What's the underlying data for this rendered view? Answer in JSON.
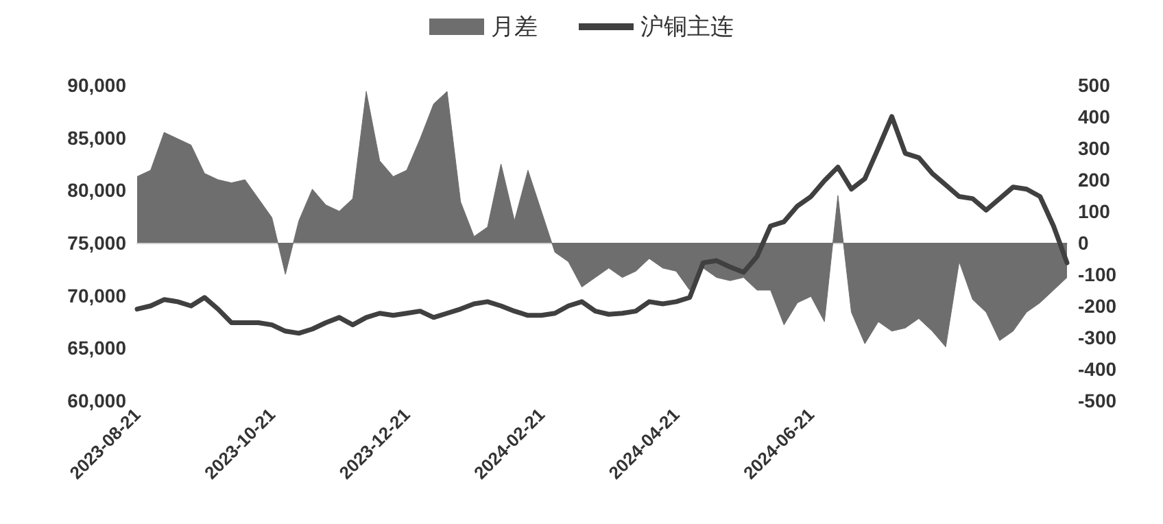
{
  "chart_data": {
    "type": "line",
    "categories": [
      "2023-08-21",
      null,
      null,
      null,
      null,
      null,
      null,
      null,
      null,
      null,
      "2023-10-21",
      null,
      null,
      null,
      null,
      null,
      null,
      null,
      null,
      null,
      "2023-12-21",
      null,
      null,
      null,
      null,
      null,
      null,
      null,
      null,
      null,
      "2024-02-21",
      null,
      null,
      null,
      null,
      null,
      null,
      null,
      null,
      null,
      "2024-04-21",
      null,
      null,
      null,
      null,
      null,
      null,
      null,
      null,
      null,
      "2024-06-21",
      null,
      null,
      null,
      null,
      null,
      null,
      null,
      null,
      null,
      null,
      null,
      null,
      null,
      null,
      null,
      null,
      null,
      null,
      null
    ],
    "series": [
      {
        "name": "月差",
        "type": "area",
        "axis": "y2",
        "color": "#6e6e6e",
        "values": [
          210,
          230,
          350,
          330,
          310,
          220,
          200,
          190,
          200,
          140,
          80,
          -100,
          70,
          170,
          120,
          100,
          140,
          480,
          260,
          210,
          230,
          330,
          440,
          480,
          130,
          20,
          50,
          250,
          70,
          230,
          100,
          -30,
          -60,
          -140,
          -110,
          -80,
          -110,
          -90,
          -50,
          -80,
          -90,
          -150,
          -80,
          -110,
          -120,
          -110,
          -150,
          -150,
          -260,
          -190,
          -170,
          -250,
          150,
          -220,
          -320,
          -250,
          -280,
          -270,
          -240,
          -280,
          -330,
          -60,
          -180,
          -220,
          -310,
          -280,
          -220,
          -190,
          -150,
          -110
        ]
      },
      {
        "name": "沪铜主连",
        "color": "#404040",
        "values": [
          68700,
          69000,
          69600,
          69400,
          69000,
          69800,
          68700,
          67400,
          67400,
          67400,
          67200,
          66600,
          66400,
          66800,
          67400,
          67900,
          67200,
          67900,
          68300,
          68100,
          68300,
          68500,
          67900,
          68300,
          68700,
          69200,
          69400,
          69000,
          68500,
          68100,
          68100,
          68300,
          69000,
          69400,
          68500,
          68200,
          68300,
          68500,
          69400,
          69200,
          69400,
          69800,
          73100,
          73300,
          72700,
          72200,
          73700,
          76600,
          77000,
          78500,
          79400,
          80900,
          82200,
          80100,
          81100,
          84000,
          87000,
          83500,
          83100,
          81600,
          80500,
          79400,
          79200,
          78100,
          79200,
          80300,
          80100,
          79400,
          76600,
          73100
        ]
      }
    ],
    "ylim": [
      60000,
      90000
    ],
    "yticks": [
      {
        "value": 60000,
        "label": "60,000"
      },
      {
        "value": 65000,
        "label": "65,000"
      },
      {
        "value": 70000,
        "label": "70,000"
      },
      {
        "value": 75000,
        "label": "75,000"
      },
      {
        "value": 80000,
        "label": "80,000"
      },
      {
        "value": 85000,
        "label": "85,000"
      },
      {
        "value": 90000,
        "label": "90,000"
      }
    ],
    "y2lim": [
      -500,
      500
    ],
    "y2ticks": [
      -500,
      -400,
      -300,
      -200,
      -100,
      0,
      100,
      200,
      300,
      400,
      500
    ],
    "legend": "top",
    "marker": "none"
  }
}
